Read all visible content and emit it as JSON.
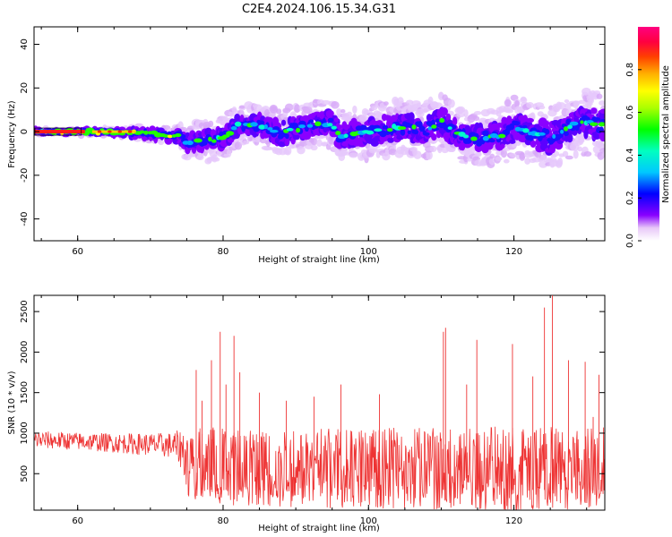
{
  "title": "C2E4.2024.106.15.34.G31",
  "chart_data": [
    {
      "type": "heatmap",
      "xlabel": "Height of straight line (km)",
      "ylabel": "Frequency (Hz)",
      "xlim": [
        54.0,
        132.5
      ],
      "ylim": [
        -50,
        48
      ],
      "xticks": [
        60,
        80,
        100,
        120
      ],
      "yticks": [
        -40,
        -20,
        0,
        20,
        40
      ],
      "grid": false,
      "ridge": {
        "x": [
          54,
          60,
          65,
          70,
          74,
          75,
          78,
          80,
          82,
          85,
          88,
          92,
          95,
          96,
          100,
          104,
          108,
          110,
          112,
          115,
          118,
          120,
          122,
          125,
          128,
          130,
          132.5
        ],
        "center": [
          0,
          0,
          0,
          -1,
          -2,
          -5,
          -4,
          -3,
          3,
          3,
          -1,
          3,
          4,
          -2,
          0,
          2,
          1,
          5,
          -1,
          -3,
          -2,
          2,
          0,
          -3,
          3,
          4,
          3
        ],
        "spread": [
          1,
          1.5,
          2,
          3,
          4,
          5,
          6,
          6,
          6,
          6,
          7,
          7,
          7,
          7,
          8,
          8,
          8,
          8,
          8,
          8,
          8,
          9,
          9,
          9,
          9,
          9,
          9
        ]
      },
      "colorbar": {
        "label": "Normalized spectral amplitude",
        "ticks": [
          0.0,
          0.2,
          0.4,
          0.6,
          0.8
        ],
        "range": [
          0,
          1
        ]
      }
    },
    {
      "type": "line",
      "xlabel": "Height of straight line (km)",
      "ylabel": "SNR (10 * v/v)",
      "xlim": [
        54.0,
        132.5
      ],
      "ylim": [
        50,
        2700
      ],
      "xticks": [
        60,
        80,
        100,
        120
      ],
      "yticks": [
        500,
        1000,
        1500,
        2000,
        2500
      ],
      "grid": false,
      "color": "#ee3333",
      "envelope": {
        "x": [
          54,
          60,
          65,
          70,
          73,
          74.5,
          75,
          80,
          90,
          100,
          110,
          120,
          132.5
        ],
        "mean": [
          920,
          900,
          880,
          860,
          850,
          800,
          650,
          600,
          580,
          560,
          560,
          560,
          560
        ],
        "amp": [
          110,
          110,
          120,
          140,
          160,
          260,
          420,
          450,
          450,
          460,
          470,
          480,
          480
        ]
      },
      "peaks": [
        {
          "x": 76.3,
          "y": 1780
        },
        {
          "x": 77.1,
          "y": 1400
        },
        {
          "x": 78.4,
          "y": 1900
        },
        {
          "x": 79.6,
          "y": 2250
        },
        {
          "x": 80.4,
          "y": 1600
        },
        {
          "x": 81.5,
          "y": 2200
        },
        {
          "x": 82.3,
          "y": 1750
        },
        {
          "x": 85.0,
          "y": 1500
        },
        {
          "x": 88.7,
          "y": 1400
        },
        {
          "x": 92.5,
          "y": 1450
        },
        {
          "x": 96.2,
          "y": 1600
        },
        {
          "x": 101.5,
          "y": 1480
        },
        {
          "x": 110.3,
          "y": 2250
        },
        {
          "x": 110.6,
          "y": 2300
        },
        {
          "x": 113.5,
          "y": 1600
        },
        {
          "x": 114.9,
          "y": 2150
        },
        {
          "x": 119.8,
          "y": 2100
        },
        {
          "x": 122.6,
          "y": 1700
        },
        {
          "x": 124.2,
          "y": 2550
        },
        {
          "x": 125.3,
          "y": 2700
        },
        {
          "x": 127.5,
          "y": 1900
        },
        {
          "x": 129.8,
          "y": 1880
        },
        {
          "x": 130.9,
          "y": 1200
        },
        {
          "x": 131.7,
          "y": 1720
        }
      ]
    }
  ]
}
